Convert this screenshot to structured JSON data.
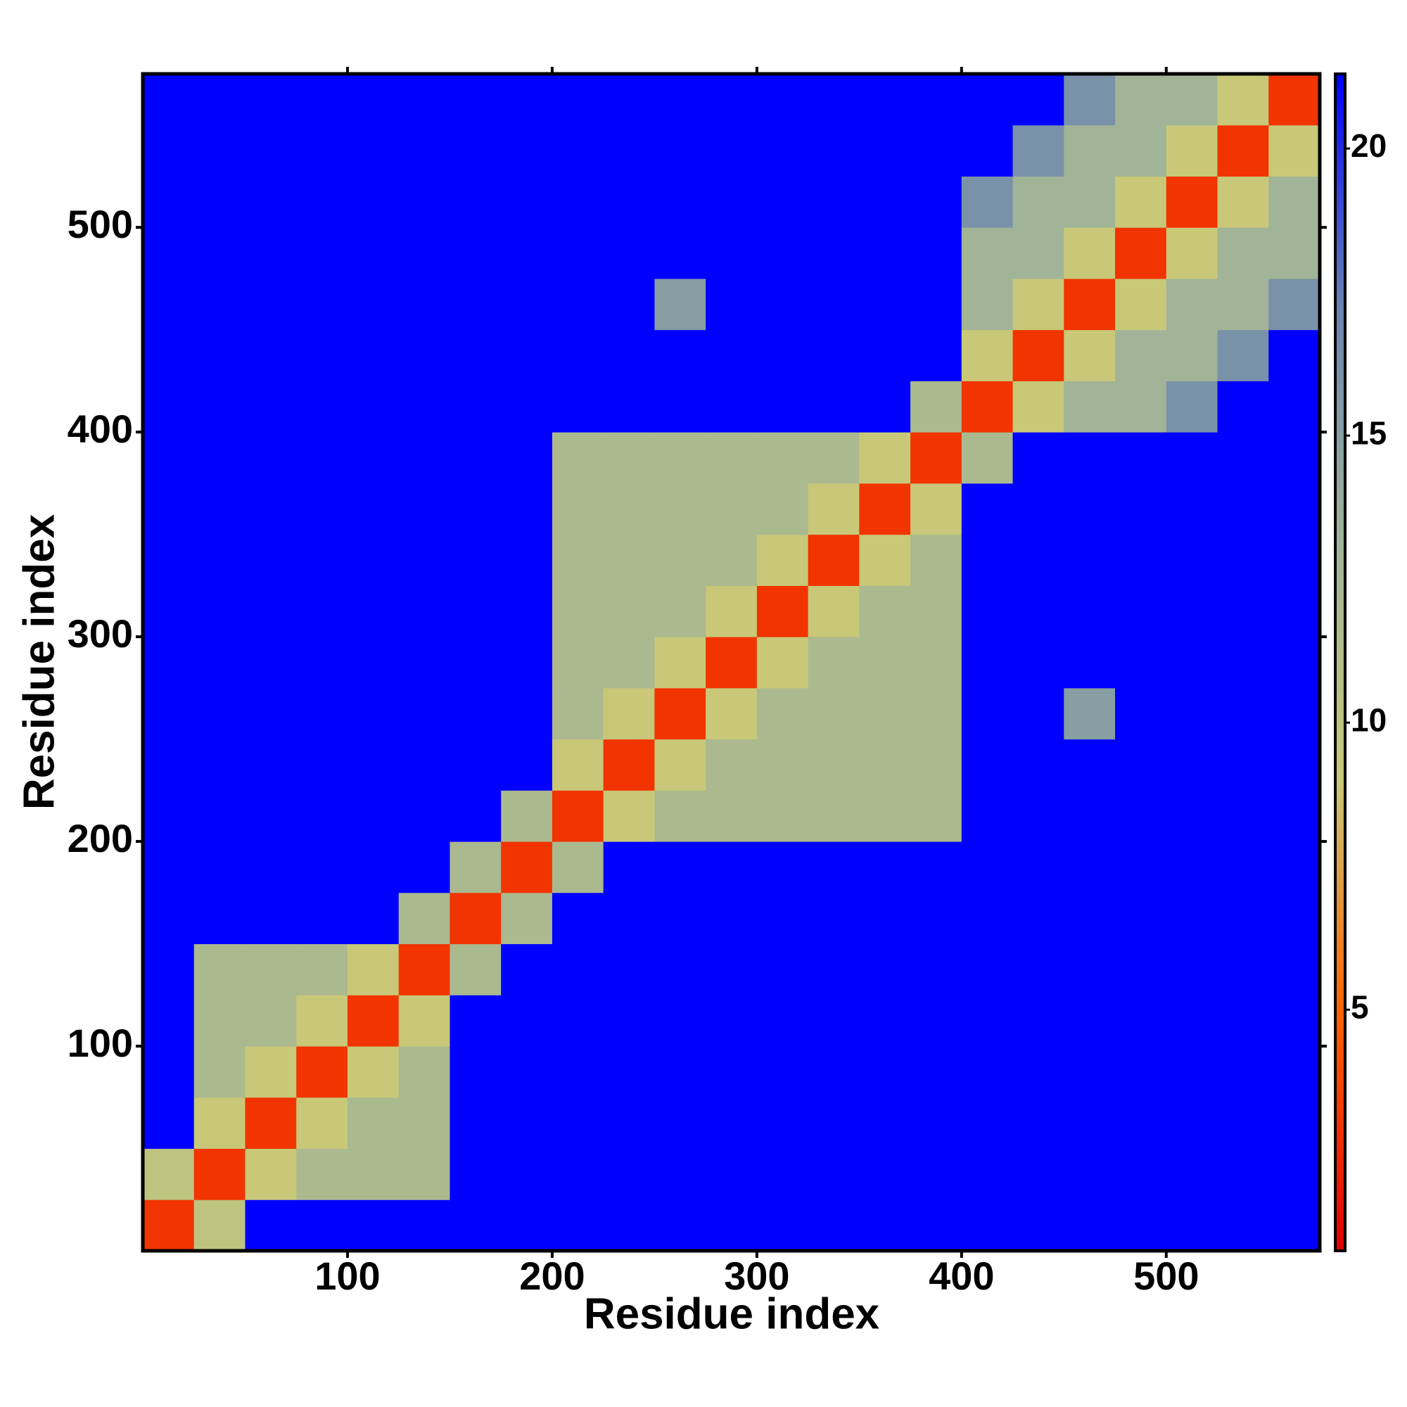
{
  "chart_data": {
    "type": "heatmap",
    "x_label": "Residue index",
    "y_label": "Residue index",
    "xbins": [
      0,
      25,
      50,
      75,
      100,
      125,
      150,
      175,
      200,
      225,
      250,
      275,
      300,
      325,
      350,
      375,
      400,
      425,
      450,
      475,
      500,
      525,
      550,
      575
    ],
    "ybins": [
      0,
      25,
      50,
      75,
      100,
      125,
      150,
      175,
      200,
      225,
      250,
      275,
      300,
      325,
      350,
      375,
      400,
      425,
      450,
      475,
      500,
      525,
      550,
      575
    ],
    "values": [
      [
        3,
        10,
        22,
        22,
        22,
        22,
        22,
        22,
        22,
        22,
        22,
        22,
        22,
        22,
        22,
        22,
        22,
        22,
        22,
        22,
        22,
        22,
        22
      ],
      [
        10,
        3,
        9,
        12,
        12,
        12,
        22,
        22,
        22,
        22,
        22,
        22,
        22,
        22,
        22,
        22,
        22,
        22,
        22,
        22,
        22,
        22,
        22
      ],
      [
        22,
        9,
        3,
        9,
        12,
        12,
        22,
        22,
        22,
        22,
        22,
        22,
        22,
        22,
        22,
        22,
        22,
        22,
        22,
        22,
        22,
        22,
        22
      ],
      [
        22,
        12,
        9,
        3,
        9,
        12,
        22,
        22,
        22,
        22,
        22,
        22,
        22,
        22,
        22,
        22,
        22,
        22,
        22,
        22,
        22,
        22,
        22
      ],
      [
        22,
        12,
        12,
        9,
        3,
        9,
        22,
        22,
        22,
        22,
        22,
        22,
        22,
        22,
        22,
        22,
        22,
        22,
        22,
        22,
        22,
        22,
        22
      ],
      [
        22,
        12,
        12,
        12,
        9,
        3,
        12,
        22,
        22,
        22,
        22,
        22,
        22,
        22,
        22,
        22,
        22,
        22,
        22,
        22,
        22,
        22,
        22
      ],
      [
        22,
        22,
        22,
        22,
        22,
        12,
        3,
        12,
        22,
        22,
        22,
        22,
        22,
        22,
        22,
        22,
        22,
        22,
        22,
        22,
        22,
        22,
        22
      ],
      [
        22,
        22,
        22,
        22,
        22,
        22,
        12,
        3,
        12,
        22,
        22,
        22,
        22,
        22,
        22,
        22,
        22,
        22,
        22,
        22,
        22,
        22,
        22
      ],
      [
        22,
        22,
        22,
        22,
        22,
        22,
        22,
        12,
        3,
        9,
        12,
        12,
        12,
        12,
        12,
        12,
        22,
        22,
        22,
        22,
        22,
        22,
        22
      ],
      [
        22,
        22,
        22,
        22,
        22,
        22,
        22,
        22,
        9,
        3,
        9,
        12,
        12,
        12,
        12,
        12,
        22,
        22,
        22,
        22,
        22,
        22,
        22
      ],
      [
        22,
        22,
        22,
        22,
        22,
        22,
        22,
        22,
        12,
        9,
        3,
        9,
        12,
        12,
        12,
        12,
        22,
        22,
        15,
        22,
        22,
        22,
        22
      ],
      [
        22,
        22,
        22,
        22,
        22,
        22,
        22,
        22,
        12,
        12,
        9,
        3,
        9,
        12,
        12,
        12,
        22,
        22,
        22,
        22,
        22,
        22,
        22
      ],
      [
        22,
        22,
        22,
        22,
        22,
        22,
        22,
        22,
        12,
        12,
        12,
        9,
        3,
        9,
        12,
        12,
        22,
        22,
        22,
        22,
        22,
        22,
        22
      ],
      [
        22,
        22,
        22,
        22,
        22,
        22,
        22,
        22,
        12,
        12,
        12,
        12,
        9,
        3,
        9,
        12,
        22,
        22,
        22,
        22,
        22,
        22,
        22
      ],
      [
        22,
        22,
        22,
        22,
        22,
        22,
        22,
        22,
        12,
        12,
        12,
        12,
        12,
        9,
        3,
        9,
        22,
        22,
        22,
        22,
        22,
        22,
        22
      ],
      [
        22,
        22,
        22,
        22,
        22,
        22,
        22,
        22,
        12,
        12,
        12,
        12,
        12,
        12,
        9,
        3,
        12,
        22,
        22,
        22,
        22,
        22,
        22
      ],
      [
        22,
        22,
        22,
        22,
        22,
        22,
        22,
        22,
        22,
        22,
        22,
        22,
        22,
        22,
        22,
        12,
        3,
        9,
        13,
        13,
        16,
        22,
        22
      ],
      [
        22,
        22,
        22,
        22,
        22,
        22,
        22,
        22,
        22,
        22,
        22,
        22,
        22,
        22,
        22,
        22,
        9,
        3,
        9,
        13,
        13,
        16,
        22
      ],
      [
        22,
        22,
        22,
        22,
        22,
        22,
        22,
        22,
        22,
        22,
        15,
        22,
        22,
        22,
        22,
        22,
        13,
        9,
        3,
        9,
        13,
        13,
        16
      ],
      [
        22,
        22,
        22,
        22,
        22,
        22,
        22,
        22,
        22,
        22,
        22,
        22,
        22,
        22,
        22,
        22,
        13,
        13,
        9,
        3,
        9,
        13,
        13
      ],
      [
        22,
        22,
        22,
        22,
        22,
        22,
        22,
        22,
        22,
        22,
        22,
        22,
        22,
        22,
        22,
        22,
        16,
        13,
        13,
        9,
        3,
        9,
        13
      ],
      [
        22,
        22,
        22,
        22,
        22,
        22,
        22,
        22,
        22,
        22,
        22,
        22,
        22,
        22,
        22,
        22,
        22,
        16,
        13,
        13,
        9,
        3,
        9
      ],
      [
        22,
        22,
        22,
        22,
        22,
        22,
        22,
        22,
        22,
        22,
        22,
        22,
        22,
        22,
        22,
        22,
        22,
        22,
        16,
        13,
        13,
        9,
        3
      ]
    ],
    "xlim": [
      0,
      575
    ],
    "ylim": [
      0,
      575
    ],
    "xticks": [
      100,
      200,
      300,
      400,
      500
    ],
    "yticks": [
      100,
      200,
      300,
      400,
      500
    ],
    "clim": [
      0.8,
      21.3
    ],
    "cticks": [
      5,
      10,
      15,
      20
    ],
    "colormap": [
      "#e00000",
      "#ff6000",
      "#c8c878",
      "#a0b498",
      "#6a84b0",
      "#0000ff"
    ]
  }
}
